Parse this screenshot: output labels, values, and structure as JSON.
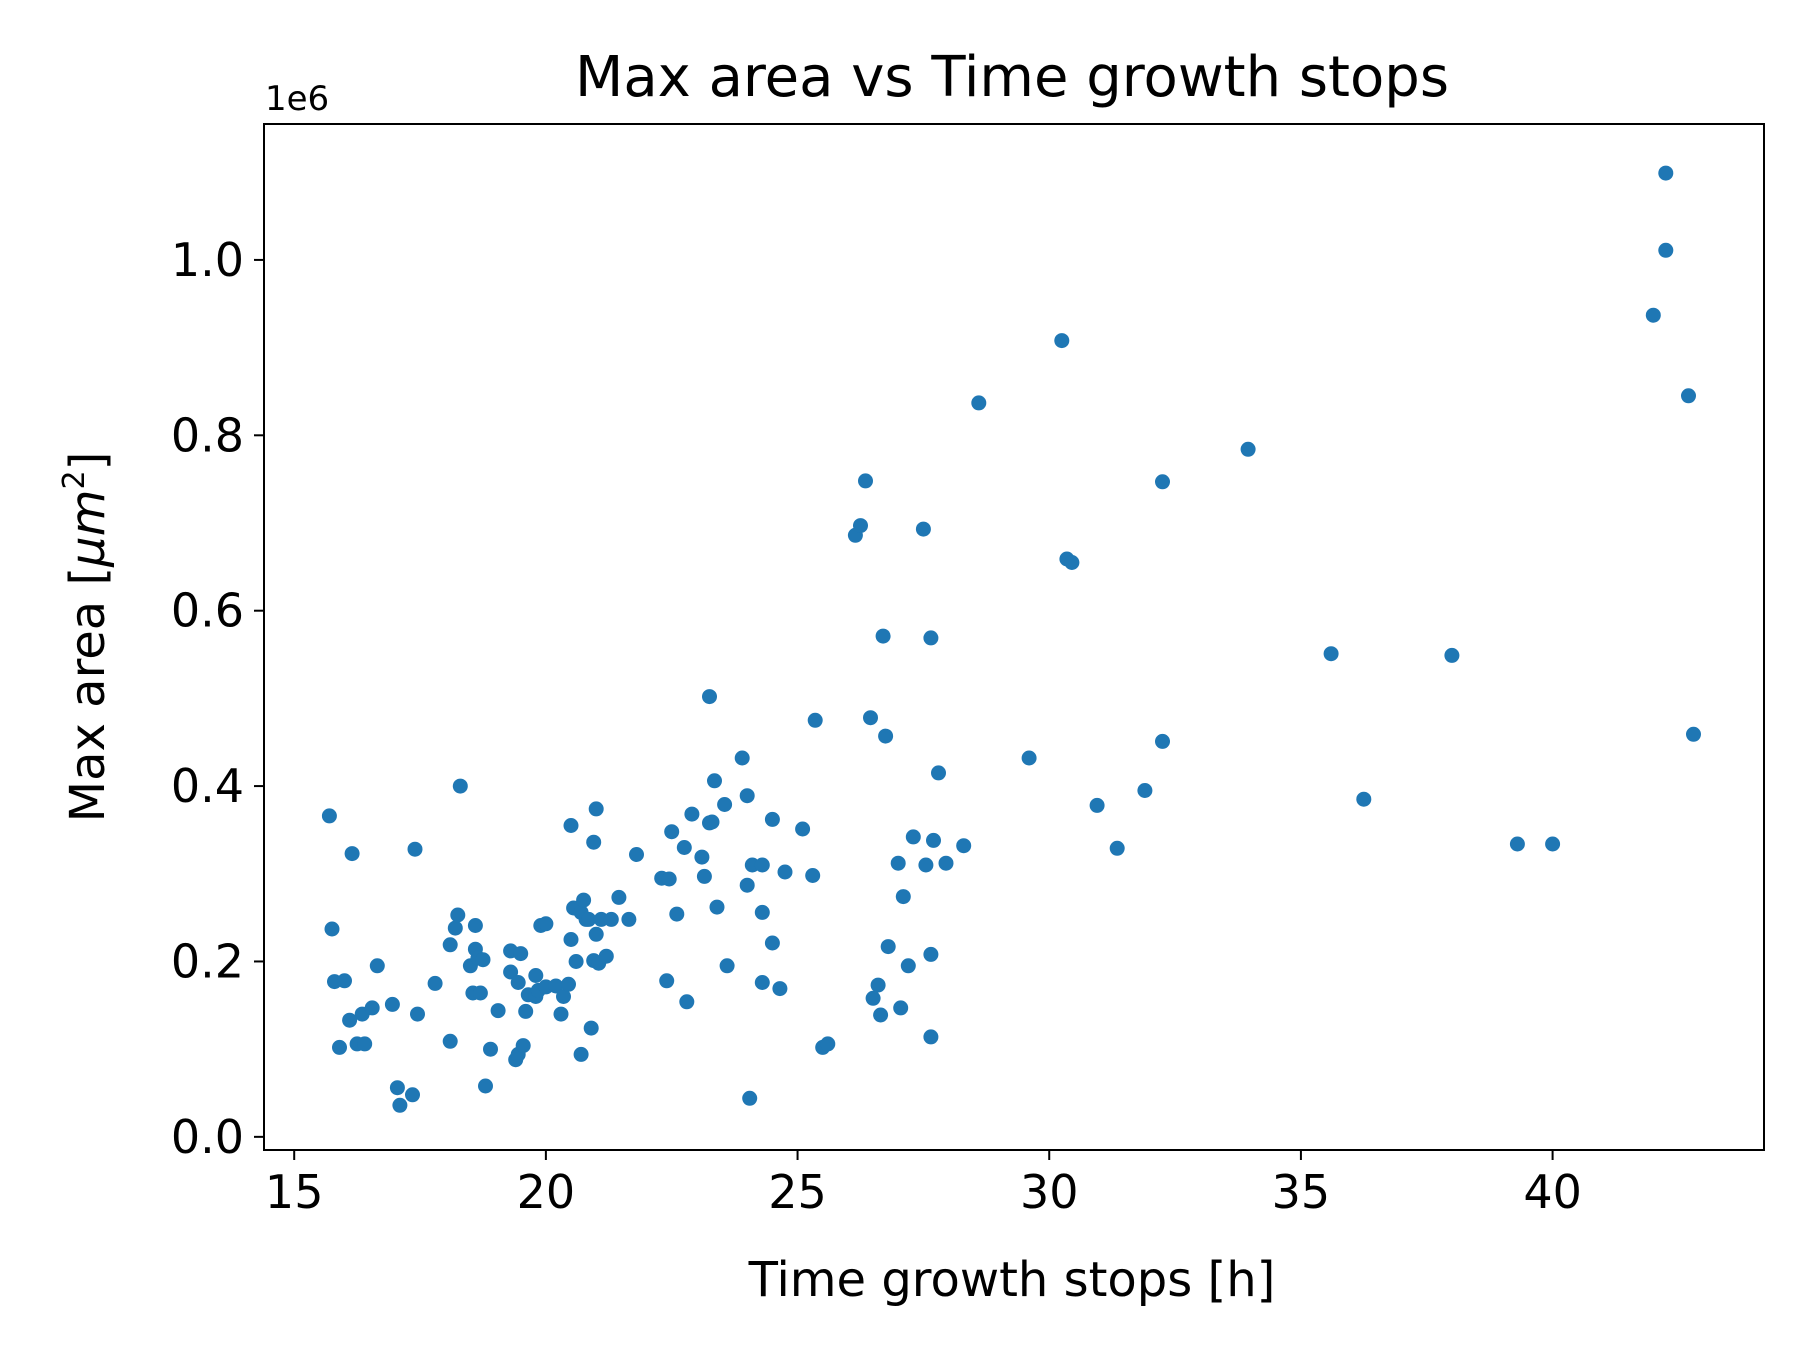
{
  "chart_data": {
    "type": "scatter",
    "title": "Max area vs Time growth stops",
    "xlabel": "Time growth stops [h]",
    "ylabel": "Max area [μm²]",
    "ylabel_main": "Max area [",
    "ylabel_unit": "μm",
    "ylabel_exp": "2",
    "ylabel_close": "]",
    "y_offset_label": "1e6",
    "xlim": [
      14.4,
      44.2
    ],
    "ylim": [
      -15000,
      1155000
    ],
    "x_ticks": [
      15,
      20,
      25,
      30,
      35,
      40
    ],
    "x_tick_labels": [
      "15",
      "20",
      "25",
      "30",
      "35",
      "40"
    ],
    "y_ticks": [
      0,
      200000,
      400000,
      600000,
      800000,
      1000000
    ],
    "y_tick_labels": [
      "0.0",
      "0.2",
      "0.4",
      "0.6",
      "0.8",
      "1.0"
    ],
    "grid": false,
    "marker_color": "#1f77b4",
    "points": [
      [
        15.7,
        366000
      ],
      [
        15.75,
        237000
      ],
      [
        15.8,
        177000
      ],
      [
        15.9,
        102000
      ],
      [
        16.0,
        178000
      ],
      [
        16.1,
        133000
      ],
      [
        16.15,
        323000
      ],
      [
        16.25,
        106000
      ],
      [
        16.35,
        140000
      ],
      [
        16.4,
        106000
      ],
      [
        16.55,
        147000
      ],
      [
        16.65,
        195000
      ],
      [
        16.95,
        151000
      ],
      [
        17.05,
        56000
      ],
      [
        17.1,
        36000
      ],
      [
        17.35,
        48000
      ],
      [
        17.4,
        328000
      ],
      [
        17.45,
        140000
      ],
      [
        17.8,
        175000
      ],
      [
        18.1,
        109000
      ],
      [
        18.1,
        219000
      ],
      [
        18.2,
        238000
      ],
      [
        18.25,
        253000
      ],
      [
        18.3,
        400000
      ],
      [
        18.5,
        195000
      ],
      [
        18.55,
        164000
      ],
      [
        18.6,
        241000
      ],
      [
        18.6,
        214000
      ],
      [
        18.65,
        204000
      ],
      [
        18.7,
        164000
      ],
      [
        18.75,
        202000
      ],
      [
        18.8,
        58000
      ],
      [
        18.9,
        100000
      ],
      [
        19.05,
        144000
      ],
      [
        19.3,
        212000
      ],
      [
        19.3,
        188000
      ],
      [
        19.4,
        88000
      ],
      [
        19.45,
        176000
      ],
      [
        19.45,
        94000
      ],
      [
        19.5,
        209000
      ],
      [
        19.55,
        104000
      ],
      [
        19.6,
        143000
      ],
      [
        19.65,
        162000
      ],
      [
        19.8,
        184000
      ],
      [
        19.8,
        160000
      ],
      [
        19.85,
        167000
      ],
      [
        19.9,
        241000
      ],
      [
        20.0,
        243000
      ],
      [
        20.0,
        171000
      ],
      [
        20.2,
        172000
      ],
      [
        20.3,
        140000
      ],
      [
        20.35,
        160000
      ],
      [
        20.45,
        174000
      ],
      [
        20.5,
        355000
      ],
      [
        20.5,
        225000
      ],
      [
        20.55,
        261000
      ],
      [
        20.6,
        200000
      ],
      [
        20.7,
        94000
      ],
      [
        20.7,
        256000
      ],
      [
        20.75,
        270000
      ],
      [
        20.8,
        248000
      ],
      [
        20.85,
        248000
      ],
      [
        20.9,
        124000
      ],
      [
        20.95,
        201000
      ],
      [
        20.95,
        336000
      ],
      [
        21.0,
        374000
      ],
      [
        21.0,
        231000
      ],
      [
        21.05,
        198000
      ],
      [
        21.1,
        248000
      ],
      [
        21.2,
        206000
      ],
      [
        21.3,
        248000
      ],
      [
        21.45,
        273000
      ],
      [
        21.65,
        248000
      ],
      [
        21.8,
        322000
      ],
      [
        22.3,
        295000
      ],
      [
        22.4,
        178000
      ],
      [
        22.45,
        294000
      ],
      [
        22.5,
        348000
      ],
      [
        22.6,
        254000
      ],
      [
        22.75,
        330000
      ],
      [
        22.8,
        154000
      ],
      [
        22.9,
        368000
      ],
      [
        23.1,
        319000
      ],
      [
        23.15,
        297000
      ],
      [
        23.25,
        502000
      ],
      [
        23.25,
        358000
      ],
      [
        23.3,
        359000
      ],
      [
        23.35,
        406000
      ],
      [
        23.4,
        262000
      ],
      [
        23.55,
        379000
      ],
      [
        23.6,
        195000
      ],
      [
        23.9,
        432000
      ],
      [
        24.0,
        389000
      ],
      [
        24.0,
        287000
      ],
      [
        24.05,
        44000
      ],
      [
        24.1,
        310000
      ],
      [
        24.3,
        310000
      ],
      [
        24.3,
        256000
      ],
      [
        24.3,
        176000
      ],
      [
        24.5,
        221000
      ],
      [
        24.5,
        362000
      ],
      [
        24.65,
        169000
      ],
      [
        24.75,
        302000
      ],
      [
        25.1,
        351000
      ],
      [
        25.3,
        298000
      ],
      [
        25.35,
        475000
      ],
      [
        25.5,
        102000
      ],
      [
        25.6,
        106000
      ],
      [
        26.15,
        686000
      ],
      [
        26.25,
        697000
      ],
      [
        26.35,
        748000
      ],
      [
        26.45,
        478000
      ],
      [
        26.5,
        158000
      ],
      [
        26.6,
        173000
      ],
      [
        26.65,
        139000
      ],
      [
        26.7,
        571000
      ],
      [
        26.75,
        457000
      ],
      [
        26.8,
        217000
      ],
      [
        27.0,
        312000
      ],
      [
        27.05,
        147000
      ],
      [
        27.1,
        274000
      ],
      [
        27.2,
        195000
      ],
      [
        27.3,
        342000
      ],
      [
        27.5,
        693000
      ],
      [
        27.55,
        310000
      ],
      [
        27.65,
        569000
      ],
      [
        27.65,
        114000
      ],
      [
        27.65,
        208000
      ],
      [
        27.7,
        338000
      ],
      [
        27.8,
        415000
      ],
      [
        27.95,
        312000
      ],
      [
        28.3,
        332000
      ],
      [
        28.6,
        837000
      ],
      [
        29.6,
        432000
      ],
      [
        30.25,
        908000
      ],
      [
        30.35,
        659000
      ],
      [
        30.45,
        655000
      ],
      [
        30.95,
        378000
      ],
      [
        31.35,
        329000
      ],
      [
        31.9,
        395000
      ],
      [
        32.25,
        747000
      ],
      [
        32.25,
        451000
      ],
      [
        33.95,
        784000
      ],
      [
        35.6,
        551000
      ],
      [
        36.25,
        385000
      ],
      [
        38.0,
        549000
      ],
      [
        39.3,
        334000
      ],
      [
        40.0,
        334000
      ],
      [
        42.0,
        937000
      ],
      [
        42.25,
        1099000
      ],
      [
        42.25,
        1011000
      ],
      [
        42.7,
        845000
      ],
      [
        42.8,
        459000
      ]
    ]
  }
}
